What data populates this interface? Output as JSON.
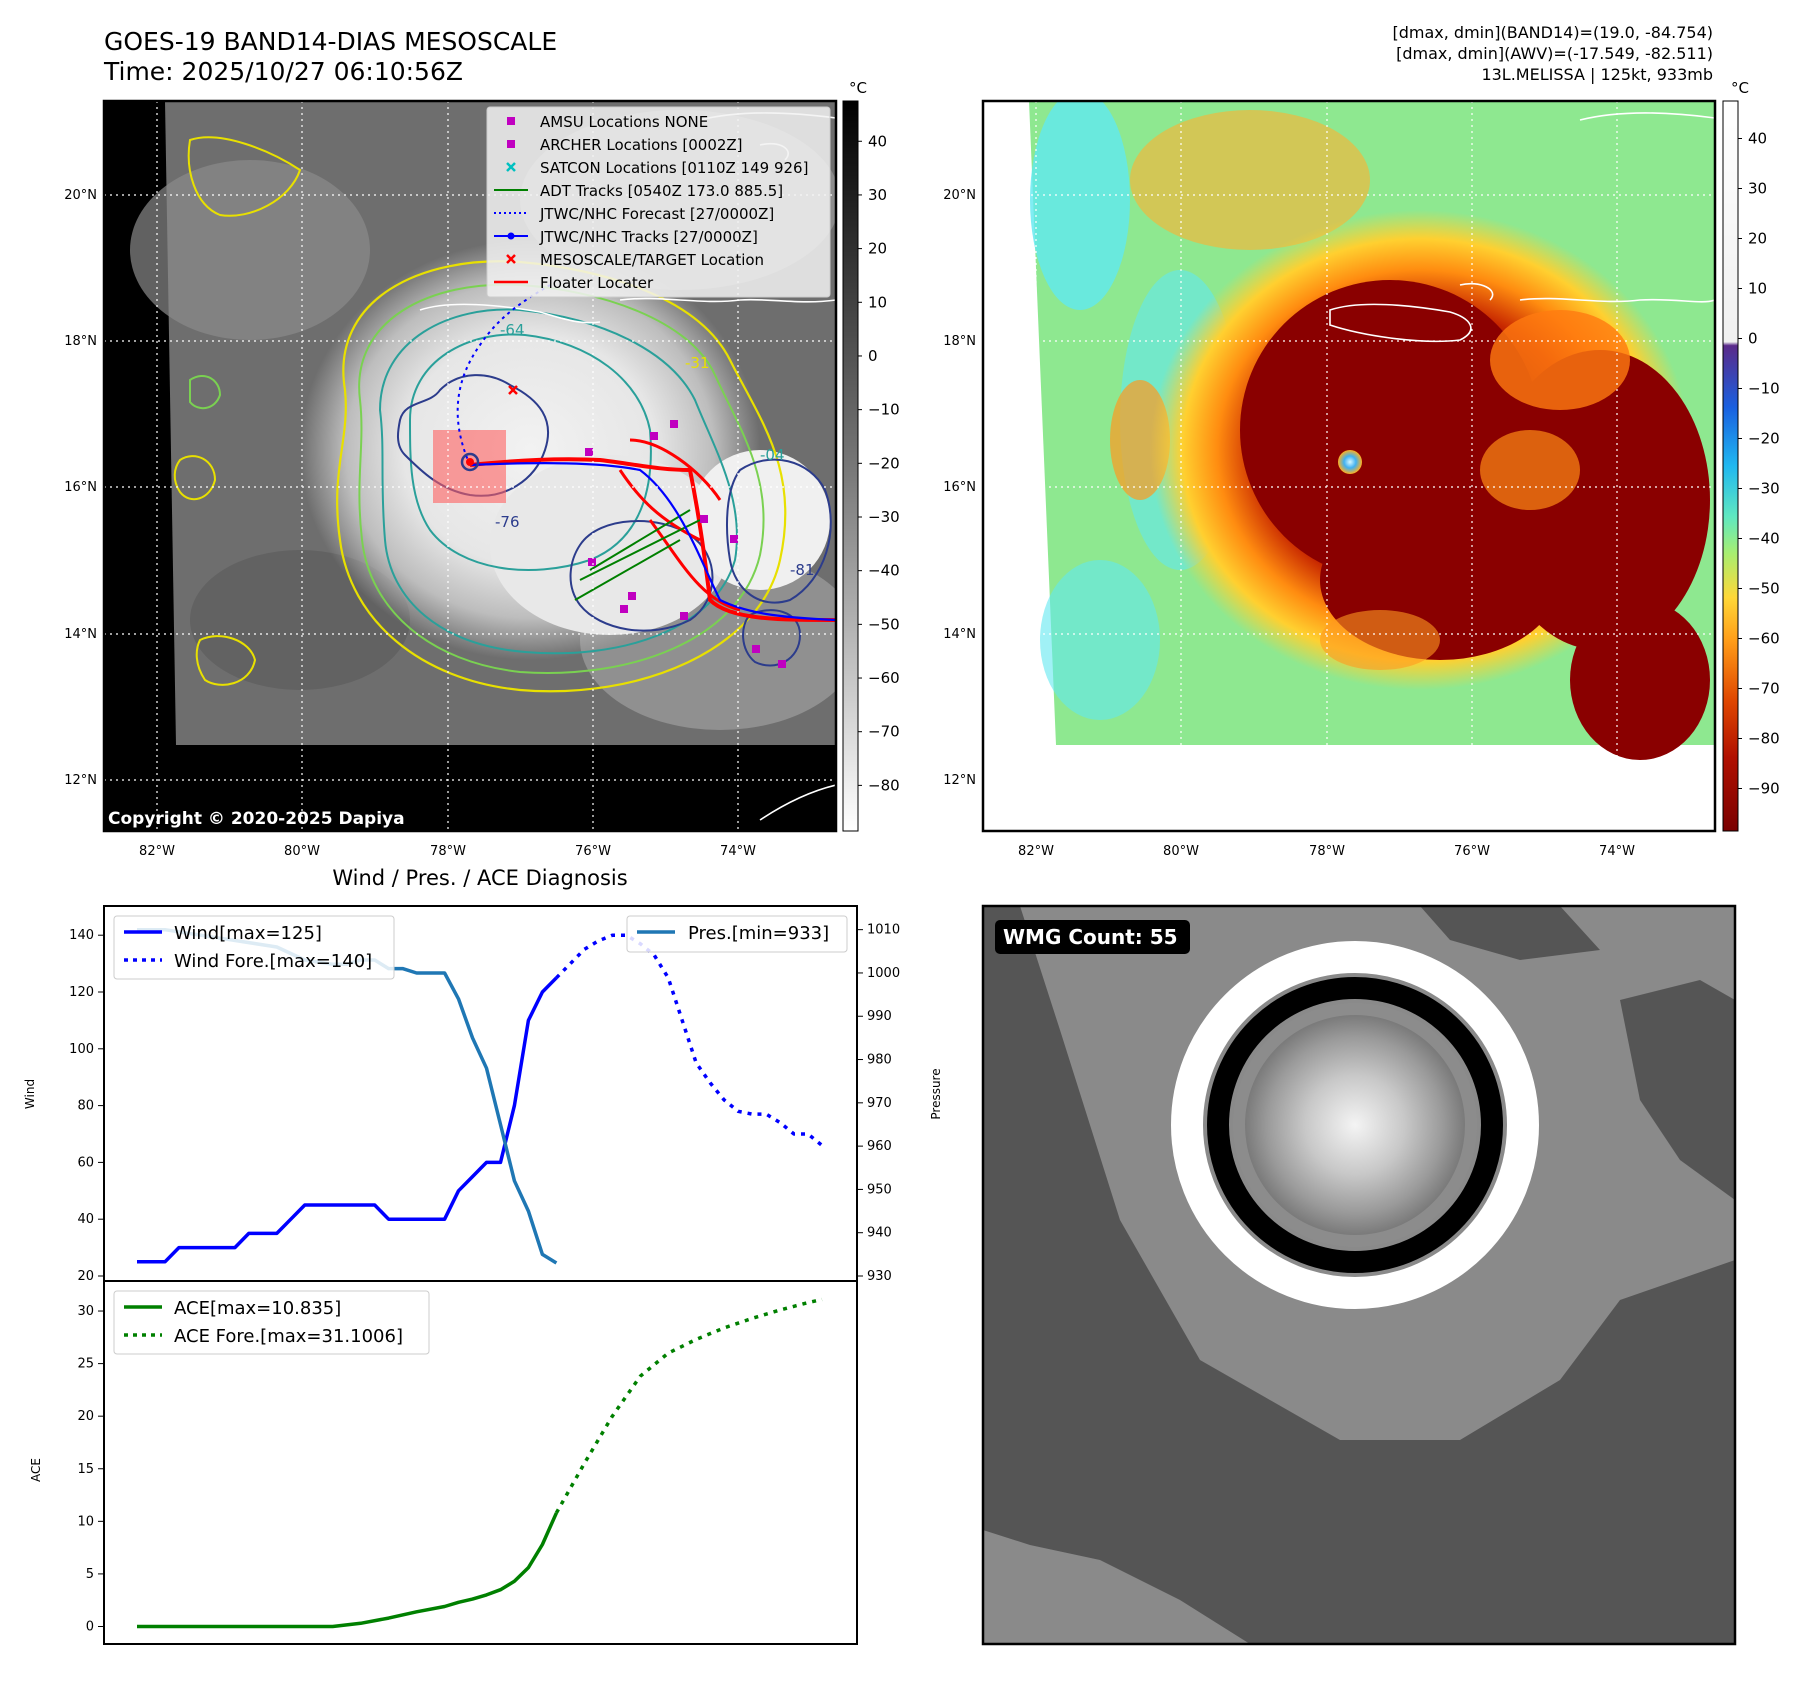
{
  "header": {
    "title_line1": "GOES-19 BAND14-DIAS MESOSCALE",
    "title_line2": "Time: 2025/10/27 06:10:56Z",
    "info_line1": "[dmax, dmin](BAND14)=(19.0, -84.754)",
    "info_line2": "[dmax, dmin](AWV)=(-17.549, -82.511)",
    "info_line3": "13L.MELISSA | 125kt, 933mb"
  },
  "colors": {
    "wind": "#0000ff",
    "pressure": "#1f77b4",
    "ace": "#008000",
    "track_red": "#ff0000",
    "contour_yellow": "#e8e000",
    "contour_green": "#7ad151",
    "contour_teal": "#2aa09a",
    "contour_navy": "#2c3c8c"
  },
  "map_ir": {
    "lat_labels": [
      "20°N",
      "18°N",
      "16°N",
      "14°N",
      "12°N"
    ],
    "lon_labels": [
      "82°W",
      "80°W",
      "78°W",
      "76°W",
      "74°W"
    ],
    "colorbar_unit": "°C",
    "colorbar_ticks": [
      "40",
      "30",
      "20",
      "10",
      "0",
      "−10",
      "−20",
      "−30",
      "−40",
      "−50",
      "−60",
      "−70",
      "−80"
    ],
    "copyright": "Copyright © 2020-2025 Dapiya",
    "contour_labels": [
      "-64",
      "-31",
      "-76",
      "-04",
      "-81"
    ],
    "legend": [
      {
        "label": "AMSU Locations NONE",
        "icon": "magenta-square-marker"
      },
      {
        "label": "ARCHER Locations [0002Z]",
        "icon": "magenta-square-marker"
      },
      {
        "label": "SATCON Locations [0110Z 149 926]",
        "icon": "cyan-x-marker"
      },
      {
        "label": "ADT Tracks [0540Z 173.0 885.5]",
        "icon": "green-line"
      },
      {
        "label": "JTWC/NHC Forecast [27/0000Z]",
        "icon": "blue-dotted-line"
      },
      {
        "label": "JTWC/NHC Tracks [27/0000Z]",
        "icon": "blue-dot-line"
      },
      {
        "label": "MESOSCALE/TARGET Location",
        "icon": "red-x-marker"
      },
      {
        "label": "Floater Locater",
        "icon": "red-line"
      }
    ]
  },
  "map_color": {
    "lat_labels": [
      "20°N",
      "18°N",
      "16°N",
      "14°N",
      "12°N"
    ],
    "lon_labels": [
      "82°W",
      "80°W",
      "78°W",
      "76°W",
      "74°W"
    ],
    "colorbar_unit": "°C",
    "colorbar_ticks": [
      "40",
      "30",
      "20",
      "10",
      "0",
      "−10",
      "−20",
      "−30",
      "−40",
      "−50",
      "−60",
      "−70",
      "−80",
      "−90"
    ]
  },
  "wmg": {
    "label": "WMG Count: 55"
  },
  "chart_data": [
    {
      "type": "line",
      "title": "Wind / Pres. / ACE Diagnosis",
      "ylabel": "Wind",
      "ylabel_right": "Pressure",
      "ylim": [
        20,
        145
      ],
      "ylim_right": [
        930,
        1012
      ],
      "yticks": [
        20,
        40,
        60,
        80,
        100,
        120,
        140
      ],
      "yticks_right": [
        930,
        940,
        950,
        960,
        970,
        980,
        990,
        1000,
        1010
      ],
      "legend_left": [
        "Wind[max=125]",
        "Wind Fore.[max=140]"
      ],
      "legend_right": [
        "Pres.[min=933]"
      ],
      "series": [
        {
          "name": "Wind[max=125]",
          "axis": "left",
          "style": "solid",
          "x": [
            0,
            6,
            12,
            18,
            24,
            30,
            36,
            42,
            48,
            54,
            60,
            66,
            72,
            78,
            84,
            90,
            96,
            102,
            108,
            114,
            120,
            126,
            132,
            138,
            144,
            150,
            156,
            162,
            168,
            174,
            180
          ],
          "values": [
            25,
            25,
            25,
            30,
            30,
            30,
            30,
            30,
            35,
            35,
            35,
            40,
            45,
            45,
            45,
            45,
            45,
            45,
            40,
            40,
            40,
            40,
            40,
            50,
            55,
            60,
            60,
            80,
            110,
            120,
            125
          ]
        },
        {
          "name": "Wind Fore.[max=140]",
          "axis": "left",
          "style": "dotted",
          "x": [
            180,
            186,
            192,
            198,
            204,
            210,
            216,
            222,
            228,
            234,
            240,
            246,
            252,
            258,
            264,
            270,
            276,
            282,
            288,
            294
          ],
          "values": [
            125,
            130,
            135,
            138,
            140,
            140,
            137,
            133,
            125,
            110,
            95,
            88,
            82,
            78,
            77,
            77,
            74,
            70,
            70,
            66
          ]
        },
        {
          "name": "Pres.[min=933]",
          "axis": "right",
          "style": "solid",
          "x": [
            0,
            12,
            24,
            36,
            48,
            60,
            72,
            84,
            90,
            96,
            102,
            108,
            114,
            120,
            126,
            132,
            138,
            144,
            150,
            156,
            162,
            168,
            174,
            180
          ],
          "values": [
            1010,
            1010,
            1009,
            1008,
            1007,
            1006,
            1003,
            1002,
            1002,
            1003,
            1003,
            1001,
            1001,
            1000,
            1000,
            1000,
            994,
            985,
            978,
            965,
            952,
            945,
            935,
            933
          ]
        }
      ]
    },
    {
      "type": "line",
      "ylabel": "ACE",
      "ylim": [
        -1,
        32
      ],
      "yticks": [
        0,
        5,
        10,
        15,
        20,
        25,
        30
      ],
      "legend": [
        "ACE[max=10.835]",
        "ACE Fore.[max=31.1006]"
      ],
      "series": [
        {
          "name": "ACE[max=10.835]",
          "style": "solid",
          "x": [
            0,
            30,
            60,
            72,
            84,
            96,
            108,
            120,
            132,
            138,
            144,
            150,
            156,
            162,
            168,
            174,
            180
          ],
          "values": [
            0,
            0,
            0,
            0,
            0,
            0.3,
            0.8,
            1.4,
            1.9,
            2.3,
            2.6,
            3.0,
            3.5,
            4.3,
            5.6,
            7.8,
            10.8
          ]
        },
        {
          "name": "ACE Fore.[max=31.1006]",
          "style": "dotted",
          "x": [
            180,
            192,
            204,
            216,
            228,
            240,
            252,
            264,
            276,
            288,
            294
          ],
          "values": [
            10.8,
            15.5,
            20,
            23.8,
            26,
            27.3,
            28.4,
            29.3,
            30.1,
            30.8,
            31.1
          ]
        }
      ]
    }
  ]
}
